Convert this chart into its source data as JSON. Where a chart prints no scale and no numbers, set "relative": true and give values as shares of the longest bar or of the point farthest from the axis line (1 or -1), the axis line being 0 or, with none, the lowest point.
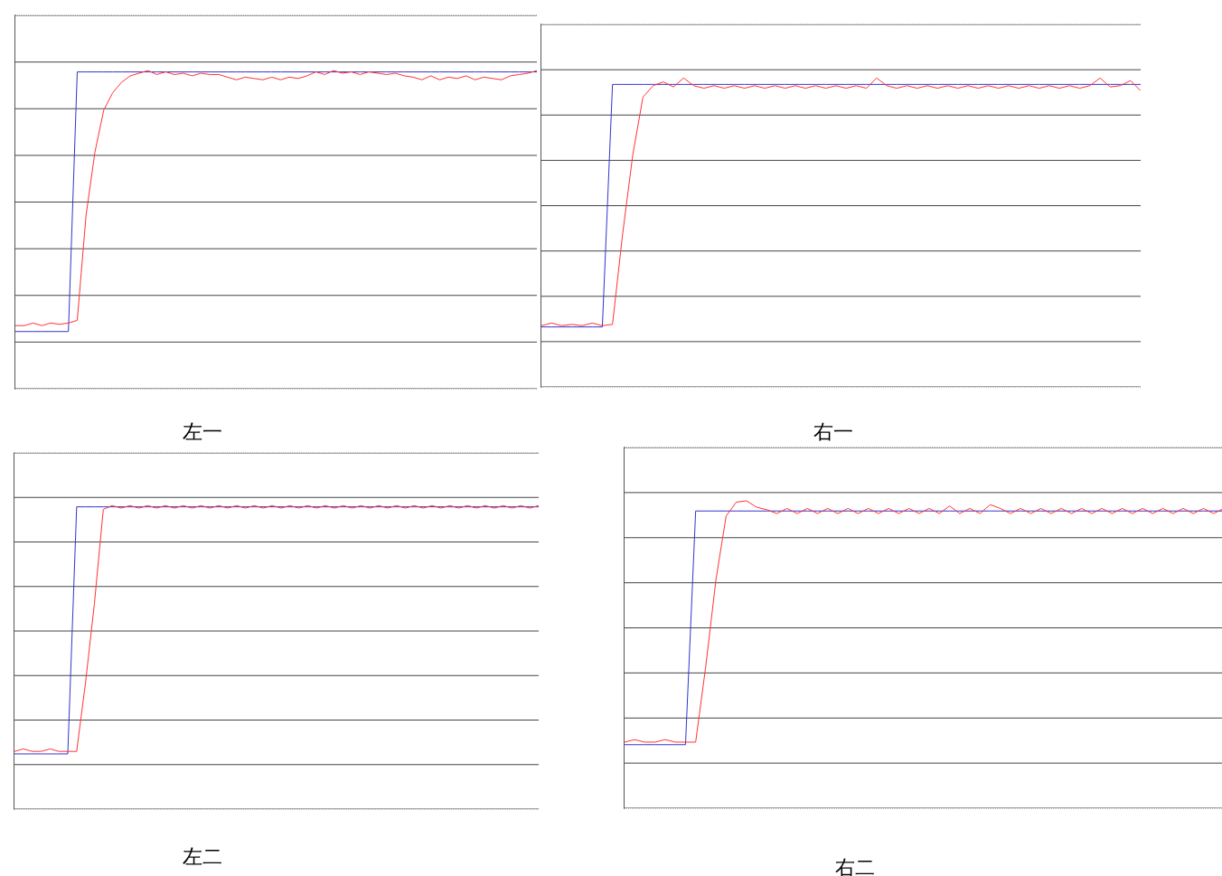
{
  "chart_data": [
    {
      "type": "line",
      "title": "左一",
      "relative": true,
      "grid": true,
      "categories": [
        null,
        null,
        null,
        null,
        null,
        null,
        null,
        null,
        null,
        null,
        null,
        null,
        null,
        null,
        null,
        null,
        null,
        null,
        null,
        null,
        null,
        null,
        null,
        null,
        null,
        null,
        null,
        null,
        null,
        null,
        null,
        null,
        null,
        null,
        null,
        null,
        null,
        null,
        null,
        null,
        null,
        null,
        null,
        null,
        null,
        null,
        null,
        null,
        null,
        null,
        null,
        null,
        null,
        null,
        null,
        null,
        null,
        null,
        null,
        null
      ],
      "series": [
        {
          "color": "#3333cc",
          "values": [
            -0.985,
            -0.985,
            -0.985,
            -0.985,
            -0.985,
            -0.985,
            -0.985,
            0.99,
            0.99,
            0.99,
            0.99,
            0.99,
            0.99,
            0.99,
            0.99,
            0.99,
            0.99,
            0.99,
            0.99,
            0.99,
            0.99,
            0.99,
            0.99,
            0.99,
            0.99,
            0.99,
            0.99,
            0.99,
            0.99,
            0.99,
            0.99,
            0.99,
            0.99,
            0.99,
            0.99,
            0.99,
            0.99,
            0.99,
            0.99,
            0.99,
            0.99,
            0.99,
            0.99,
            0.99,
            0.99,
            0.99,
            0.99,
            0.99,
            0.99,
            0.99,
            0.99,
            0.99,
            0.99,
            0.99,
            0.99,
            0.99,
            0.99,
            0.99,
            0.99,
            0.99
          ]
        },
        {
          "color": "#ff3333",
          "values": [
            -0.94,
            -0.94,
            -0.92,
            -0.94,
            -0.92,
            -0.93,
            -0.92,
            -0.9,
            -0.1,
            0.38,
            0.7,
            0.83,
            0.91,
            0.96,
            0.98,
            1.0,
            0.97,
            0.99,
            0.97,
            0.98,
            0.96,
            0.98,
            0.97,
            0.97,
            0.95,
            0.93,
            0.95,
            0.94,
            0.93,
            0.95,
            0.93,
            0.95,
            0.94,
            0.96,
            0.99,
            0.97,
            1.0,
            0.98,
            0.99,
            0.97,
            0.99,
            0.98,
            0.97,
            0.98,
            0.96,
            0.95,
            0.93,
            0.96,
            0.93,
            0.95,
            0.94,
            0.96,
            0.93,
            0.95,
            0.94,
            0.93,
            0.96,
            0.97,
            0.98,
            1.0
          ]
        }
      ]
    },
    {
      "type": "line",
      "title": "右一",
      "relative": true,
      "grid": true,
      "categories": [
        null,
        null,
        null,
        null,
        null,
        null,
        null,
        null,
        null,
        null,
        null,
        null,
        null,
        null,
        null,
        null,
        null,
        null,
        null,
        null,
        null,
        null,
        null,
        null,
        null,
        null,
        null,
        null,
        null,
        null,
        null,
        null,
        null,
        null,
        null,
        null,
        null,
        null,
        null,
        null,
        null,
        null,
        null,
        null,
        null,
        null,
        null,
        null,
        null,
        null,
        null,
        null,
        null,
        null,
        null,
        null,
        null,
        null,
        null,
        null
      ],
      "series": [
        {
          "color": "#3333cc",
          "values": [
            -0.95,
            -0.95,
            -0.95,
            -0.95,
            -0.95,
            -0.95,
            -0.95,
            0.95,
            0.95,
            0.95,
            0.95,
            0.95,
            0.95,
            0.95,
            0.95,
            0.95,
            0.95,
            0.95,
            0.95,
            0.95,
            0.95,
            0.95,
            0.95,
            0.95,
            0.95,
            0.95,
            0.95,
            0.95,
            0.95,
            0.95,
            0.95,
            0.95,
            0.95,
            0.95,
            0.95,
            0.95,
            0.95,
            0.95,
            0.95,
            0.95,
            0.95,
            0.95,
            0.95,
            0.95,
            0.95,
            0.95,
            0.95,
            0.95,
            0.95,
            0.95,
            0.95,
            0.95,
            0.95,
            0.95,
            0.95,
            0.95,
            0.95,
            0.95,
            0.95,
            0.95
          ]
        },
        {
          "color": "#ff3333",
          "values": [
            -0.94,
            -0.92,
            -0.94,
            -0.93,
            -0.94,
            -0.92,
            -0.94,
            -0.93,
            -0.22,
            0.4,
            0.85,
            0.94,
            0.97,
            0.93,
            1.0,
            0.94,
            0.92,
            0.94,
            0.92,
            0.94,
            0.92,
            0.94,
            0.92,
            0.94,
            0.92,
            0.94,
            0.92,
            0.94,
            0.92,
            0.94,
            0.92,
            0.94,
            0.92,
            1.0,
            0.94,
            0.92,
            0.94,
            0.92,
            0.94,
            0.92,
            0.94,
            0.92,
            0.94,
            0.92,
            0.94,
            0.92,
            0.94,
            0.92,
            0.94,
            0.92,
            0.94,
            0.92,
            0.94,
            0.92,
            0.94,
            1.0,
            0.93,
            0.94,
            0.98,
            0.9
          ]
        }
      ]
    },
    {
      "type": "line",
      "title": "左二",
      "relative": true,
      "grid": true,
      "categories": [
        null,
        null,
        null,
        null,
        null,
        null,
        null,
        null,
        null,
        null,
        null,
        null,
        null,
        null,
        null,
        null,
        null,
        null,
        null,
        null,
        null,
        null,
        null,
        null,
        null,
        null,
        null,
        null,
        null,
        null,
        null,
        null,
        null,
        null,
        null,
        null,
        null,
        null,
        null,
        null,
        null,
        null,
        null,
        null,
        null,
        null,
        null,
        null,
        null,
        null,
        null,
        null,
        null,
        null,
        null,
        null,
        null,
        null,
        null,
        null
      ],
      "series": [
        {
          "color": "#3333cc",
          "values": [
            -0.98,
            -0.98,
            -0.98,
            -0.98,
            -0.98,
            -0.98,
            -0.98,
            0.99,
            0.99,
            0.99,
            0.99,
            0.99,
            0.99,
            0.99,
            0.99,
            0.99,
            0.99,
            0.99,
            0.99,
            0.99,
            0.99,
            0.99,
            0.99,
            0.99,
            0.99,
            0.99,
            0.99,
            0.99,
            0.99,
            0.99,
            0.99,
            0.99,
            0.99,
            0.99,
            0.99,
            0.99,
            0.99,
            0.99,
            0.99,
            0.99,
            0.99,
            0.99,
            0.99,
            0.99,
            0.99,
            0.99,
            0.99,
            0.99,
            0.99,
            0.99,
            0.99,
            0.99,
            0.99,
            0.99,
            0.99,
            0.99,
            0.99,
            0.99,
            0.99,
            0.99
          ]
        },
        {
          "color": "#ff3333",
          "values": [
            -0.96,
            -0.94,
            -0.96,
            -0.96,
            -0.94,
            -0.96,
            -0.96,
            -0.96,
            -0.41,
            0.22,
            0.97,
            1.0,
            0.98,
            1.0,
            0.98,
            1.0,
            0.98,
            1.0,
            0.98,
            1.0,
            0.98,
            1.0,
            0.98,
            1.0,
            0.98,
            1.0,
            0.98,
            1.0,
            0.98,
            1.0,
            0.98,
            1.0,
            0.98,
            1.0,
            0.98,
            1.0,
            0.98,
            1.0,
            0.98,
            1.0,
            0.98,
            1.0,
            0.98,
            1.0,
            0.98,
            1.0,
            0.98,
            1.0,
            0.98,
            1.0,
            0.98,
            1.0,
            0.98,
            1.0,
            0.98,
            1.0,
            0.98,
            1.0,
            0.98,
            1.0
          ]
        }
      ]
    },
    {
      "type": "line",
      "title": "右二",
      "relative": true,
      "grid": true,
      "categories": [
        null,
        null,
        null,
        null,
        null,
        null,
        null,
        null,
        null,
        null,
        null,
        null,
        null,
        null,
        null,
        null,
        null,
        null,
        null,
        null,
        null,
        null,
        null,
        null,
        null,
        null,
        null,
        null,
        null,
        null,
        null,
        null,
        null,
        null,
        null,
        null,
        null,
        null,
        null,
        null,
        null,
        null,
        null,
        null,
        null,
        null,
        null,
        null,
        null,
        null,
        null,
        null,
        null,
        null,
        null,
        null,
        null,
        null,
        null,
        null
      ],
      "series": [
        {
          "color": "#3333cc",
          "values": [
            -0.92,
            -0.92,
            -0.92,
            -0.92,
            -0.92,
            -0.92,
            -0.92,
            0.92,
            0.92,
            0.92,
            0.92,
            0.92,
            0.92,
            0.92,
            0.92,
            0.92,
            0.92,
            0.92,
            0.92,
            0.92,
            0.92,
            0.92,
            0.92,
            0.92,
            0.92,
            0.92,
            0.92,
            0.92,
            0.92,
            0.92,
            0.92,
            0.92,
            0.92,
            0.92,
            0.92,
            0.92,
            0.92,
            0.92,
            0.92,
            0.92,
            0.92,
            0.92,
            0.92,
            0.92,
            0.92,
            0.92,
            0.92,
            0.92,
            0.92,
            0.92,
            0.92,
            0.92,
            0.92,
            0.92,
            0.92,
            0.92,
            0.92,
            0.92,
            0.92,
            0.92
          ]
        },
        {
          "color": "#ff3333",
          "values": [
            -0.9,
            -0.88,
            -0.9,
            -0.9,
            -0.88,
            -0.9,
            -0.9,
            -0.9,
            -0.3,
            0.38,
            0.88,
            0.99,
            1.0,
            0.95,
            0.93,
            0.9,
            0.94,
            0.9,
            0.94,
            0.9,
            0.94,
            0.9,
            0.94,
            0.9,
            0.94,
            0.9,
            0.94,
            0.9,
            0.94,
            0.9,
            0.94,
            0.9,
            0.96,
            0.9,
            0.94,
            0.9,
            0.97,
            0.94,
            0.9,
            0.94,
            0.9,
            0.94,
            0.9,
            0.94,
            0.9,
            0.94,
            0.9,
            0.94,
            0.9,
            0.94,
            0.9,
            0.94,
            0.9,
            0.94,
            0.9,
            0.94,
            0.9,
            0.94,
            0.9,
            0.94
          ]
        }
      ]
    }
  ]
}
